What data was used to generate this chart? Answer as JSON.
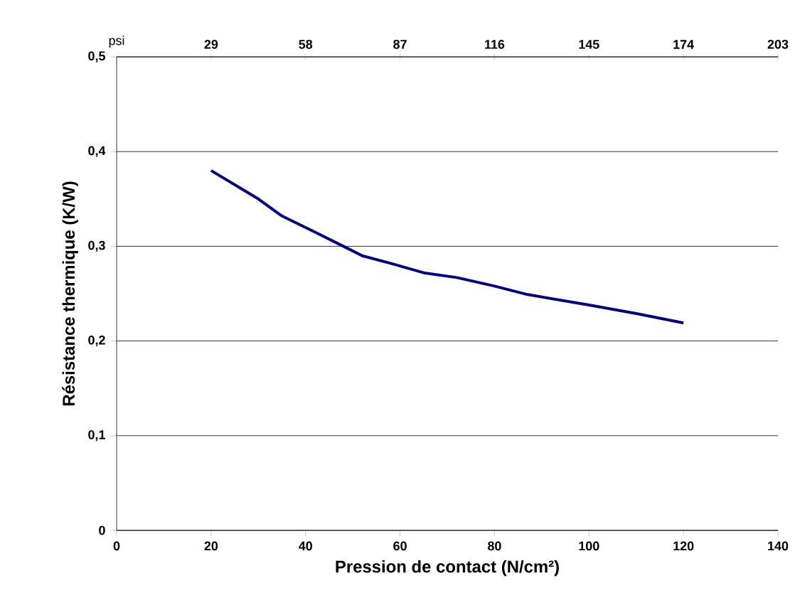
{
  "chart_data": {
    "type": "line",
    "xlabel": "Pression de contact (N/cm²)",
    "ylabel": "Résistance thermique (K/W)",
    "x2label": "psi",
    "x": [
      20,
      30,
      35,
      42,
      48,
      52,
      58,
      65,
      72,
      80,
      87,
      100,
      110,
      120
    ],
    "series": [
      {
        "color": "#000080",
        "values": [
          0.38,
          0.35,
          0.332,
          0.315,
          0.3,
          0.29,
          0.282,
          0.272,
          0.267,
          0.258,
          0.249,
          0.238,
          0.229,
          0.219
        ]
      }
    ],
    "xlim": [
      0,
      140
    ],
    "xticks": [
      0,
      20,
      40,
      60,
      80,
      100,
      120,
      140
    ],
    "x2lim": [
      0,
      203
    ],
    "x2ticks": [
      29,
      58,
      87,
      116,
      145,
      174,
      203
    ],
    "ylim": [
      0,
      0.5
    ],
    "yticks": [
      {
        "value": 0,
        "label": "0"
      },
      {
        "value": 0.1,
        "label": "0,1"
      },
      {
        "value": 0.2,
        "label": "0,2"
      },
      {
        "value": 0.3,
        "label": "0,3"
      },
      {
        "value": 0.4,
        "label": "0,4"
      },
      {
        "value": 0.5,
        "label": "0,5"
      }
    ],
    "grid": "y",
    "marker": "none",
    "line_style": "solid"
  }
}
